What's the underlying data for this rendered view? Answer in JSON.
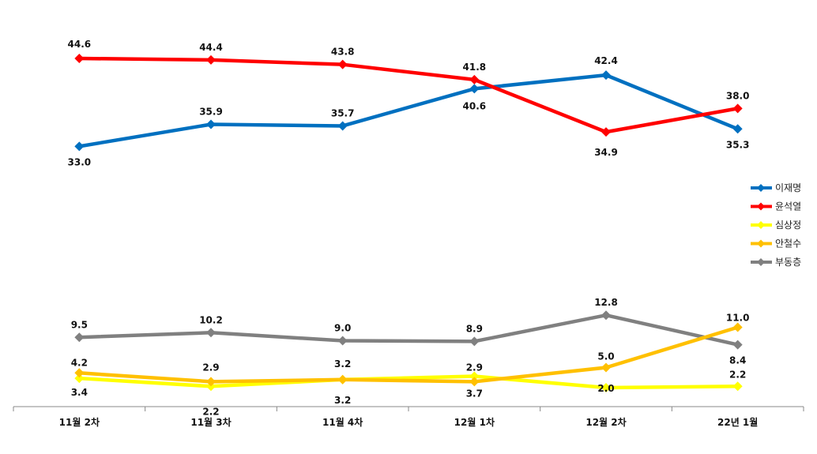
{
  "chart_data": {
    "type": "line",
    "categories": [
      "11월 2차",
      "11월 3차",
      "11월 4차",
      "12월 1차",
      "12월 2차",
      "22년 1월"
    ],
    "series": [
      {
        "name": "이재명",
        "color": "#0070C0",
        "values": [
          33.0,
          35.9,
          35.7,
          40.6,
          42.4,
          35.3
        ]
      },
      {
        "name": "윤석열",
        "color": "#FF0000",
        "values": [
          44.6,
          44.4,
          43.8,
          41.8,
          34.9,
          38.0
        ]
      },
      {
        "name": "심상정",
        "color": "#FFFF00",
        "values": [
          3.4,
          2.2,
          3.2,
          3.7,
          2.0,
          2.2
        ]
      },
      {
        "name": "안철수",
        "color": "#FFC000",
        "values": [
          4.2,
          2.9,
          3.2,
          2.9,
          5.0,
          11.0
        ]
      },
      {
        "name": "부동층",
        "color": "#808080",
        "values": [
          9.5,
          10.2,
          9.0,
          8.9,
          12.8,
          8.4
        ]
      }
    ],
    "value_labels": [
      [
        "33.0",
        "35.9",
        "35.7",
        "40.6",
        "42.4",
        "35.3"
      ],
      [
        "44.6",
        "44.4",
        "43.8",
        "41.8",
        "34.9",
        "38.0"
      ],
      [
        "3.4",
        "2.2",
        "3.2",
        "3.7",
        "2.0",
        "2.2"
      ],
      [
        "4.2",
        "2.9",
        "3.2",
        "2.9",
        "5.0",
        "11.0"
      ],
      [
        "9.5",
        "10.2",
        "9.0",
        "8.9",
        "12.8",
        "8.4"
      ]
    ],
    "axis_break": true,
    "grid": false,
    "legend_position": "right"
  }
}
